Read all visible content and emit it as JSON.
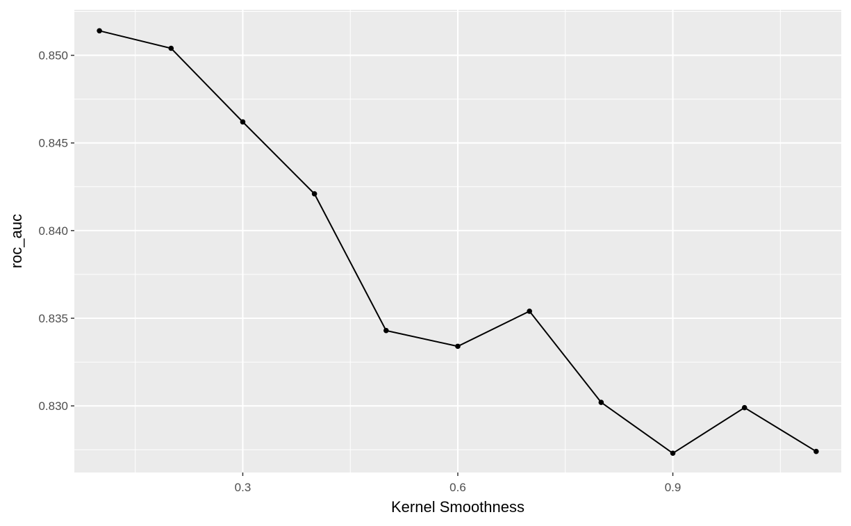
{
  "chart_data": {
    "type": "line",
    "xlabel": "Kernel Smoothness",
    "ylabel": "roc_auc",
    "xlim": [
      0.065,
      1.135
    ],
    "ylim": [
      0.8262,
      0.8526
    ],
    "x_ticks": [
      0.3,
      0.6,
      0.9
    ],
    "x_tick_labels": [
      "0.3",
      "0.6",
      "0.9"
    ],
    "y_ticks": [
      0.83,
      0.835,
      0.84,
      0.845,
      0.85
    ],
    "y_tick_labels": [
      "0.830",
      "0.835",
      "0.840",
      "0.845",
      "0.850"
    ],
    "grid": true,
    "series": [
      {
        "x": [
          0.1,
          0.2,
          0.3,
          0.4,
          0.5,
          0.6,
          0.7,
          0.8,
          0.9,
          1.0,
          1.1
        ],
        "y": [
          0.8514,
          0.8504,
          0.8462,
          0.8421,
          0.8343,
          0.8334,
          0.8354,
          0.8302,
          0.8273,
          0.8299,
          0.8274
        ]
      }
    ],
    "colors": {
      "panel_background": "#ebebeb",
      "grid_major": "#ffffff",
      "line": "#000000",
      "tick_text": "#4d4d4d"
    }
  }
}
